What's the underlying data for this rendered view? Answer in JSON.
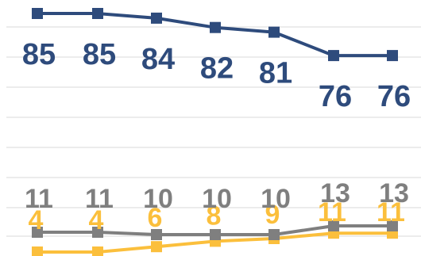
{
  "chart_data": {
    "type": "line",
    "categories": [
      "",
      "",
      "",
      "",
      "",
      "",
      ""
    ],
    "grid": true,
    "legend": "none",
    "series": [
      {
        "color": "#2e4b7c",
        "marker": "square",
        "values": [
          85,
          85,
          84,
          82,
          81,
          76,
          76
        ],
        "labels": [
          "85",
          "85",
          "84",
          "82",
          "81",
          "76",
          "76"
        ]
      },
      {
        "color": "#7f7f7f",
        "marker": "square",
        "values": [
          11,
          11,
          10,
          10,
          10,
          13,
          13
        ],
        "labels": [
          "11",
          "11",
          "10",
          "10",
          "10",
          "13",
          "13"
        ]
      },
      {
        "color": "#fbbf3c",
        "marker": "square",
        "values": [
          4,
          4,
          6,
          8,
          9,
          11,
          11
        ],
        "labels": [
          "4",
          "4",
          "6",
          "8",
          "9",
          "11",
          "11"
        ]
      }
    ]
  }
}
